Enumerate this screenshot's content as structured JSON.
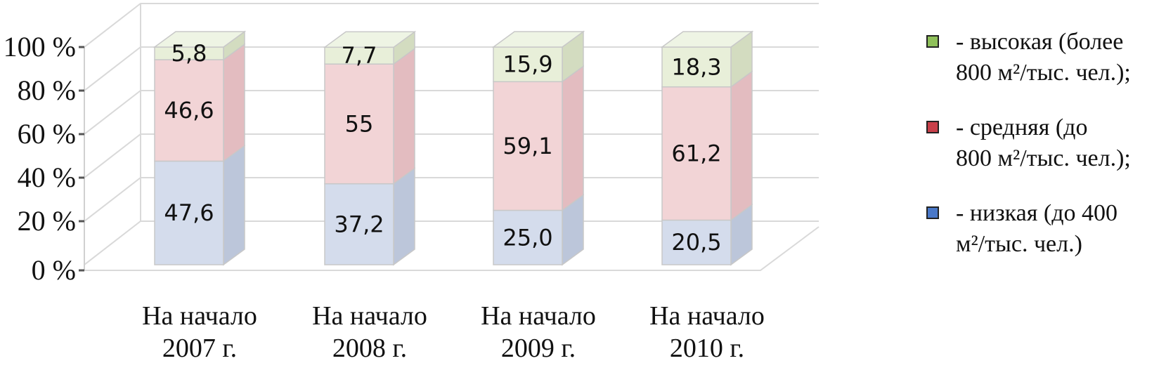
{
  "chart_data": {
    "type": "bar",
    "stacked": true,
    "three_d": true,
    "categories": [
      [
        "На начало",
        "2007 г."
      ],
      [
        "На начало",
        "2008 г."
      ],
      [
        "На начало",
        "2009 г."
      ],
      [
        "На начало",
        "2010 г."
      ]
    ],
    "series": [
      {
        "name": "- низкая (до 400 м²/тыс. чел.)",
        "color": "#d4dcec",
        "side": "#bcc6da",
        "top": "#e4eaf5",
        "values": [
          47.6,
          37.2,
          25.0,
          20.5
        ],
        "labels": [
          "47,6",
          "37,2",
          "25,0",
          "20,5"
        ]
      },
      {
        "name": "- средняя (до 800 м²/тыс. чел.);",
        "color": "#f2d4d6",
        "side": "#e3bcc0",
        "top": "#f7e1e3",
        "values": [
          46.6,
          55,
          59.1,
          61.2
        ],
        "labels": [
          "46,6",
          "55",
          "59,1",
          "61,2"
        ]
      },
      {
        "name": "- высокая (более 800 м²/тыс. чел.);",
        "color": "#e8efd9",
        "side": "#d3dcc0",
        "top": "#eef4e4",
        "values": [
          5.8,
          7.7,
          15.9,
          18.3
        ],
        "labels": [
          "5,8",
          "7,7",
          "15,9",
          "18,3"
        ]
      }
    ],
    "y_ticks": [
      "0 %",
      "20 %",
      "40 %",
      "60 %",
      "80 %",
      "100 %"
    ],
    "ylim": [
      0,
      100
    ],
    "grid": true,
    "legend_position": "right"
  },
  "legend": [
    {
      "line1": "- высокая (более",
      "line2": "800 м²/тыс. чел.);",
      "swatch": "#8fc05a"
    },
    {
      "line1": "- средняя (до",
      "line2": "800 м²/тыс. чел.);",
      "swatch": "#c8404a"
    },
    {
      "line1": "- низкая (до 400",
      "line2": "м²/тыс. чел.)",
      "swatch": "#4a78c8"
    }
  ]
}
